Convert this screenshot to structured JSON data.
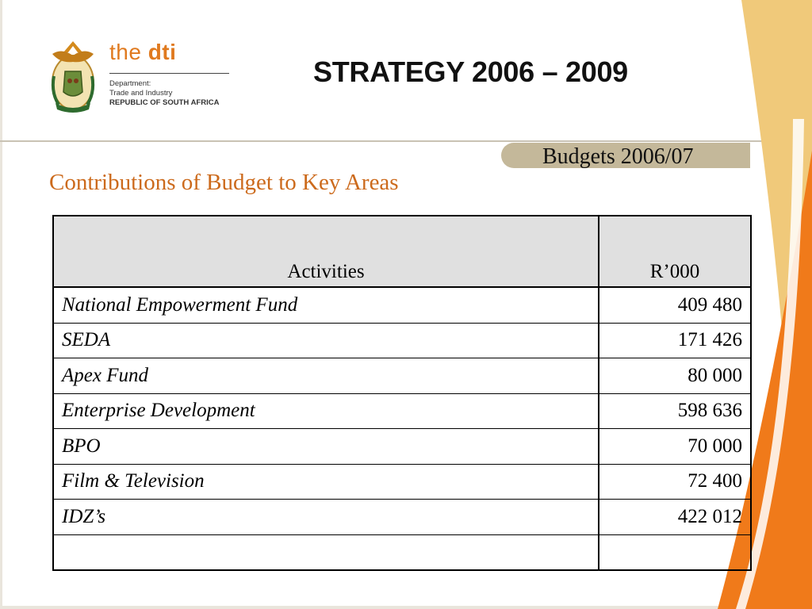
{
  "header": {
    "brand_prefix": "the ",
    "brand_name": "dti",
    "dept_line1": "Department:",
    "dept_line2": "Trade and Industry",
    "dept_line3": "REPUBLIC OF SOUTH AFRICA",
    "title": "STRATEGY 2006 – 2009"
  },
  "section_tab": "Budgets 2006/07",
  "subtitle": "Contributions of Budget to Key Areas",
  "table": {
    "col_activity": "Activities",
    "col_amount": "R’000",
    "rows": [
      {
        "activity": "National Empowerment Fund",
        "amount": "409 480"
      },
      {
        "activity": "SEDA",
        "amount": "171 426"
      },
      {
        "activity": "Apex Fund",
        "amount": "80 000"
      },
      {
        "activity": "Enterprise Development",
        "amount": "598 636"
      },
      {
        "activity": "BPO",
        "amount": "70 000"
      },
      {
        "activity": "Film & Television",
        "amount": "72 400"
      },
      {
        "activity": "IDZ’s",
        "amount": "422 012"
      },
      {
        "activity": "",
        "amount": ""
      }
    ]
  },
  "colors": {
    "accent_orange": "#f07a1a",
    "accent_gold": "#e8b85a",
    "tab_bg": "#c4b89a",
    "subtitle": "#cc6a1c"
  }
}
